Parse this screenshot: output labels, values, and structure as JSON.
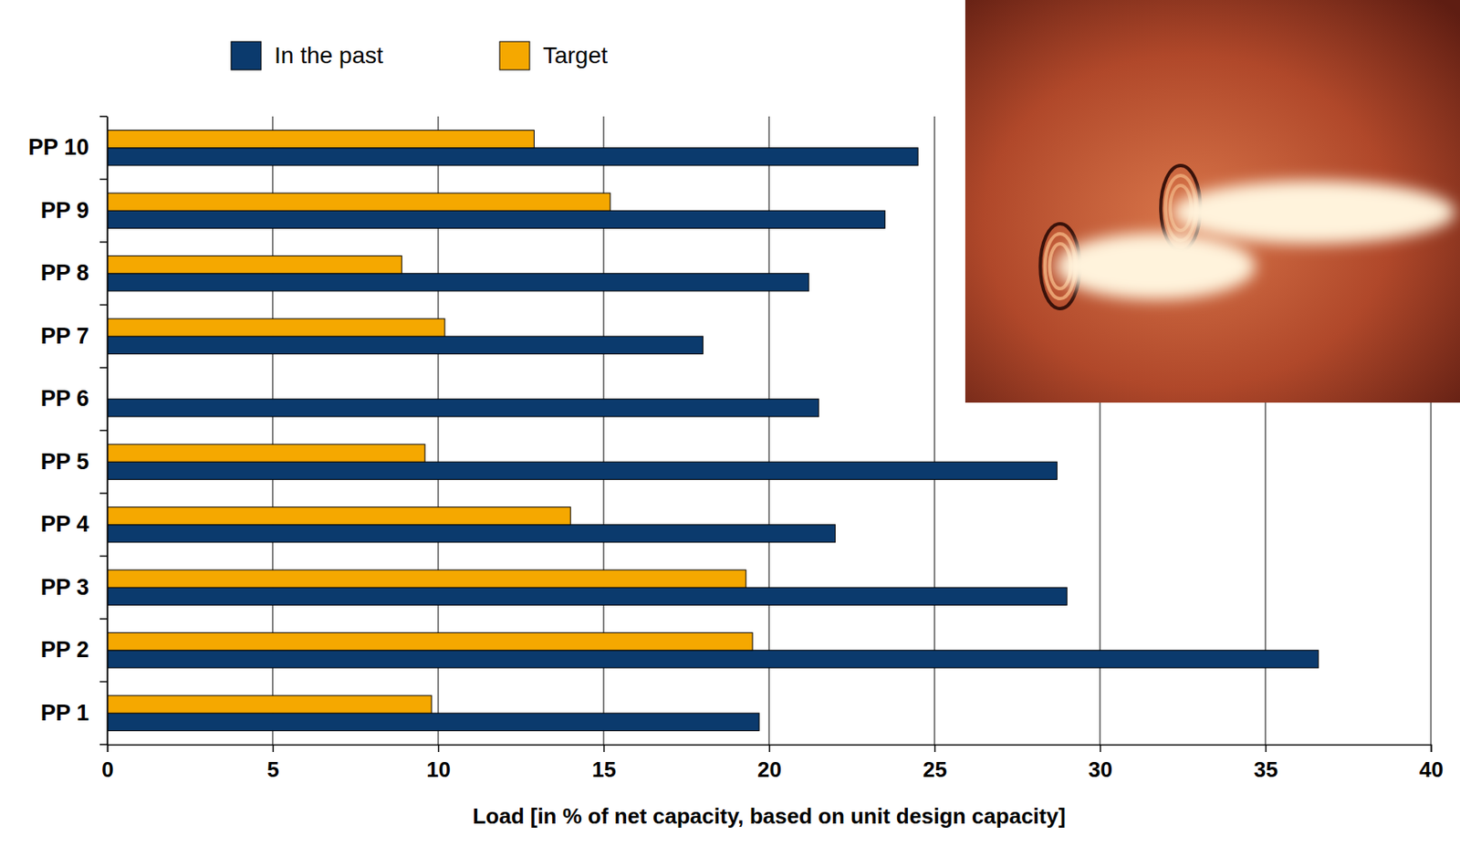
{
  "chart_data": {
    "type": "bar",
    "orientation": "horizontal",
    "x_label": "Load [in % of net capacity, based on unit design capacity]",
    "categories": [
      "PP 1",
      "PP 2",
      "PP 3",
      "PP 4",
      "PP 5",
      "PP 6",
      "PP 7",
      "PP 8",
      "PP 9",
      "PP 10"
    ],
    "series": [
      {
        "name": "In the past",
        "color": "#0b3a6d",
        "values": [
          19.7,
          36.6,
          29.0,
          22.0,
          28.7,
          21.5,
          18.0,
          21.2,
          23.5,
          24.5
        ]
      },
      {
        "name": "Target",
        "color": "#f5a800",
        "values": [
          9.8,
          19.5,
          19.3,
          14.0,
          9.6,
          null,
          10.2,
          8.9,
          15.2,
          12.9
        ]
      }
    ],
    "xlim": [
      0,
      40
    ],
    "xticks": [
      0,
      5,
      10,
      15,
      20,
      25,
      30,
      35,
      40
    ],
    "grid": true,
    "legend": "top"
  }
}
